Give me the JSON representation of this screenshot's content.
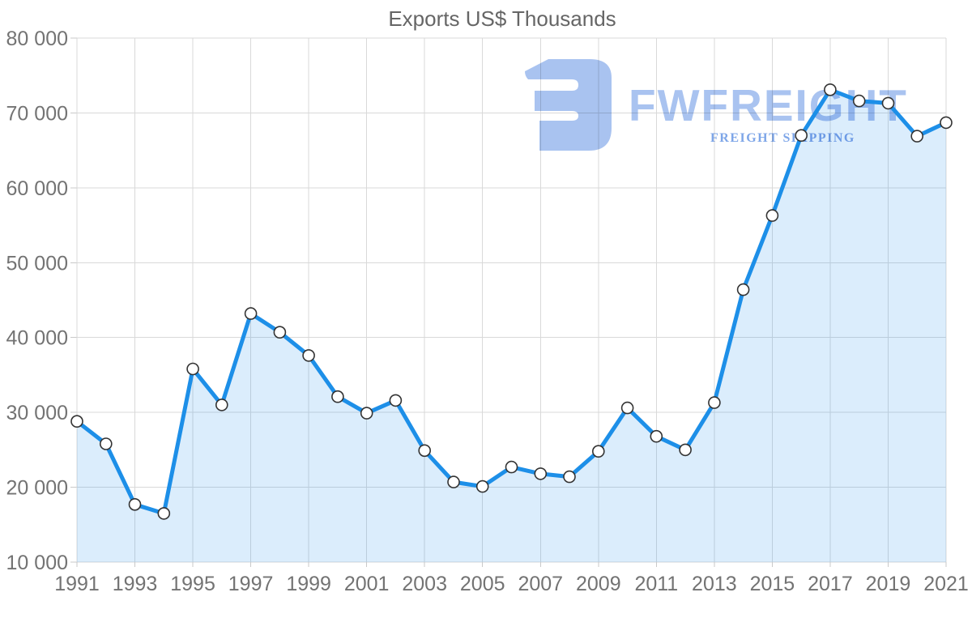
{
  "chart_data": {
    "type": "area",
    "title": "Exports US$ Thousands",
    "xlabel": "",
    "ylabel": "",
    "categories": [
      1991,
      1992,
      1993,
      1994,
      1995,
      1996,
      1997,
      1998,
      1999,
      2000,
      2001,
      2002,
      2003,
      2004,
      2005,
      2006,
      2007,
      2008,
      2009,
      2010,
      2011,
      2012,
      2013,
      2014,
      2015,
      2016,
      2017,
      2018,
      2019,
      2020,
      2021
    ],
    "values": [
      28800,
      25800,
      17700,
      16500,
      35800,
      31000,
      43200,
      40700,
      37600,
      32100,
      29900,
      31600,
      24900,
      20700,
      20100,
      22700,
      21800,
      21400,
      24800,
      30600,
      26800,
      25000,
      31300,
      46400,
      56300,
      67000,
      73100,
      71600,
      71300,
      66900,
      68700
    ],
    "ylim": [
      10000,
      80000
    ],
    "y_tick_step": 10000,
    "y_tick_labels": [
      "10 000",
      "20 000",
      "30 000",
      "40 000",
      "50 000",
      "60 000",
      "70 000",
      "80 000"
    ],
    "x_tick_years": [
      1991,
      1993,
      1995,
      1997,
      1999,
      2001,
      2003,
      2005,
      2007,
      2009,
      2011,
      2013,
      2015,
      2017,
      2019,
      2021
    ],
    "grid": true,
    "legend": "none",
    "colors": {
      "line": "#1d8fe8",
      "area_fill": "rgba(30,144,234,0.16)",
      "grid": "#d9d9d9",
      "tick_mark": "#c9c9c9",
      "axis_text": "#737373",
      "title_text": "#666666",
      "marker_fill": "#ffffff",
      "marker_stroke": "#333333"
    }
  },
  "watermark": {
    "brand": "FWFREIGHT",
    "tagline": "FREIGHT SHIPPING",
    "brand_color": "#a9c3f0",
    "tagline_color": "#7ea6e8",
    "icon_color": "#a9c3f0",
    "icon": "fwfreight-logo-icon"
  }
}
